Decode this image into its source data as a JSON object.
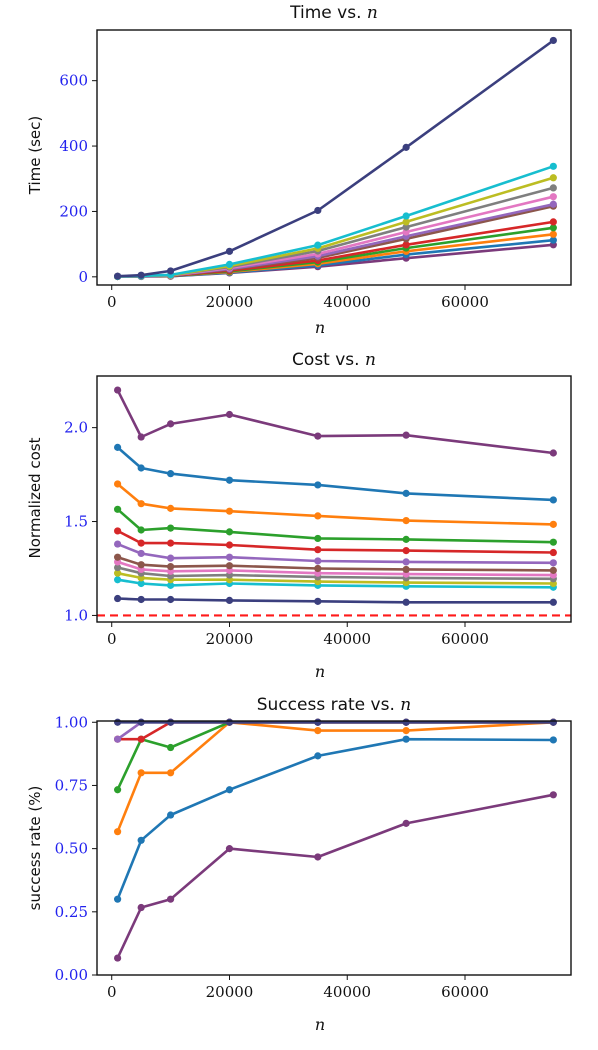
{
  "chart_data": [
    {
      "type": "line",
      "title": "Time vs. ",
      "title_var": "n",
      "xlabel": "n",
      "ylabel": "Time (sec)",
      "xlim": [
        -2500,
        78000
      ],
      "ylim": [
        -25,
        755
      ],
      "xticks": [
        0,
        20000,
        40000,
        60000
      ],
      "yticks": [
        0,
        200,
        400,
        600
      ],
      "x": [
        1000,
        5000,
        10000,
        20000,
        35000,
        50000,
        75000
      ],
      "series": [
        {
          "color": "#3b3f7e",
          "values": [
            2,
            5,
            18,
            78,
            203,
            396,
            723
          ]
        },
        {
          "color": "#17becf",
          "values": [
            1,
            3,
            6,
            38,
            97,
            186,
            338
          ]
        },
        {
          "color": "#bcbd22",
          "values": [
            1,
            3,
            5,
            33,
            87,
            168,
            303
          ]
        },
        {
          "color": "#7f7f7f",
          "values": [
            1,
            2,
            5,
            30,
            79,
            152,
            272
          ]
        },
        {
          "color": "#e377c2",
          "values": [
            1,
            2,
            4,
            27,
            70,
            137,
            245
          ]
        },
        {
          "color": "#9467bd",
          "values": [
            1,
            2,
            4,
            24,
            63,
            124,
            222
          ]
        },
        {
          "color": "#8c564b",
          "values": [
            1,
            2,
            4,
            22,
            58,
            116,
            216
          ]
        },
        {
          "color": "#d62728",
          "values": [
            1,
            2,
            3,
            19,
            50,
            98,
            168
          ]
        },
        {
          "color": "#2ca02c",
          "values": [
            1,
            2,
            3,
            17,
            45,
            88,
            150
          ]
        },
        {
          "color": "#ff7f0e",
          "values": [
            1,
            2,
            3,
            15,
            40,
            78,
            130
          ]
        },
        {
          "color": "#1f77b4",
          "values": [
            1,
            1,
            2,
            13,
            35,
            68,
            112
          ]
        },
        {
          "color": "#7b3a7b",
          "values": [
            1,
            1,
            2,
            12,
            31,
            57,
            98
          ]
        }
      ]
    },
    {
      "type": "line",
      "title": "Cost vs. ",
      "title_var": "n",
      "xlabel": "n",
      "ylabel": "Normalized cost",
      "xlim": [
        -2500,
        78000
      ],
      "ylim": [
        0.965,
        2.275
      ],
      "xticks": [
        0,
        20000,
        40000,
        60000
      ],
      "yticks": [
        1.0,
        1.5,
        2.0
      ],
      "ytick_labels": [
        "1.0",
        "1.5",
        "2.0"
      ],
      "reference_line": {
        "y": 1.0,
        "color": "#ff1a1a"
      },
      "x": [
        1000,
        5000,
        10000,
        20000,
        35000,
        50000,
        75000
      ],
      "series": [
        {
          "color": "#7b3a7b",
          "values": [
            2.2,
            1.95,
            2.02,
            2.07,
            1.955,
            1.96,
            1.865
          ]
        },
        {
          "color": "#1f77b4",
          "values": [
            1.895,
            1.785,
            1.755,
            1.72,
            1.695,
            1.65,
            1.615
          ]
        },
        {
          "color": "#ff7f0e",
          "values": [
            1.7,
            1.595,
            1.57,
            1.555,
            1.53,
            1.505,
            1.485
          ]
        },
        {
          "color": "#2ca02c",
          "values": [
            1.565,
            1.455,
            1.465,
            1.445,
            1.41,
            1.405,
            1.39
          ]
        },
        {
          "color": "#d62728",
          "values": [
            1.45,
            1.385,
            1.385,
            1.375,
            1.35,
            1.345,
            1.335
          ]
        },
        {
          "color": "#9467bd",
          "values": [
            1.38,
            1.33,
            1.305,
            1.31,
            1.29,
            1.285,
            1.28
          ]
        },
        {
          "color": "#8c564b",
          "values": [
            1.31,
            1.27,
            1.26,
            1.265,
            1.25,
            1.245,
            1.24
          ]
        },
        {
          "color": "#e377c2",
          "values": [
            1.285,
            1.245,
            1.235,
            1.24,
            1.225,
            1.22,
            1.215
          ]
        },
        {
          "color": "#7f7f7f",
          "values": [
            1.255,
            1.225,
            1.21,
            1.215,
            1.205,
            1.2,
            1.195
          ]
        },
        {
          "color": "#bcbd22",
          "values": [
            1.225,
            1.2,
            1.19,
            1.19,
            1.18,
            1.175,
            1.17
          ]
        },
        {
          "color": "#17becf",
          "values": [
            1.19,
            1.17,
            1.16,
            1.17,
            1.16,
            1.155,
            1.15
          ]
        },
        {
          "color": "#3b3f7e",
          "values": [
            1.09,
            1.085,
            1.085,
            1.08,
            1.075,
            1.07,
            1.07
          ]
        }
      ]
    },
    {
      "type": "line",
      "title": "Success rate vs. ",
      "title_var": "n",
      "xlabel": "n",
      "ylabel": "success rate (%)",
      "xlim": [
        -2500,
        78000
      ],
      "ylim": [
        0.0,
        1.005
      ],
      "xticks": [
        0,
        20000,
        40000,
        60000
      ],
      "yticks": [
        0.0,
        0.25,
        0.5,
        0.75,
        1.0
      ],
      "ytick_labels": [
        "0.00",
        "0.25",
        "0.50",
        "0.75",
        "1.00"
      ],
      "x": [
        1000,
        5000,
        10000,
        20000,
        35000,
        50000,
        75000
      ],
      "series": [
        {
          "color": "#3b3f7e",
          "values": [
            1.0,
            1.0,
            1.0,
            1.0,
            1.0,
            1.0,
            1.0
          ]
        },
        {
          "color": "#9467bd",
          "values": [
            0.933,
            1.0,
            1.0,
            1.0,
            1.0,
            1.0,
            1.0
          ]
        },
        {
          "color": "#d62728",
          "values": [
            0.933,
            0.933,
            1.0,
            1.0,
            1.0,
            1.0,
            1.0
          ]
        },
        {
          "color": "#2ca02c",
          "values": [
            0.733,
            0.933,
            0.9,
            1.0,
            1.0,
            1.0,
            1.0
          ]
        },
        {
          "color": "#ff7f0e",
          "values": [
            0.567,
            0.8,
            0.8,
            1.0,
            0.967,
            0.967,
            1.0
          ]
        },
        {
          "color": "#1f77b4",
          "values": [
            0.3,
            0.533,
            0.633,
            0.733,
            0.867,
            0.933,
            0.93
          ]
        },
        {
          "color": "#7b3a7b",
          "values": [
            0.067,
            0.267,
            0.3,
            0.5,
            0.467,
            0.6,
            0.713
          ]
        }
      ]
    }
  ]
}
